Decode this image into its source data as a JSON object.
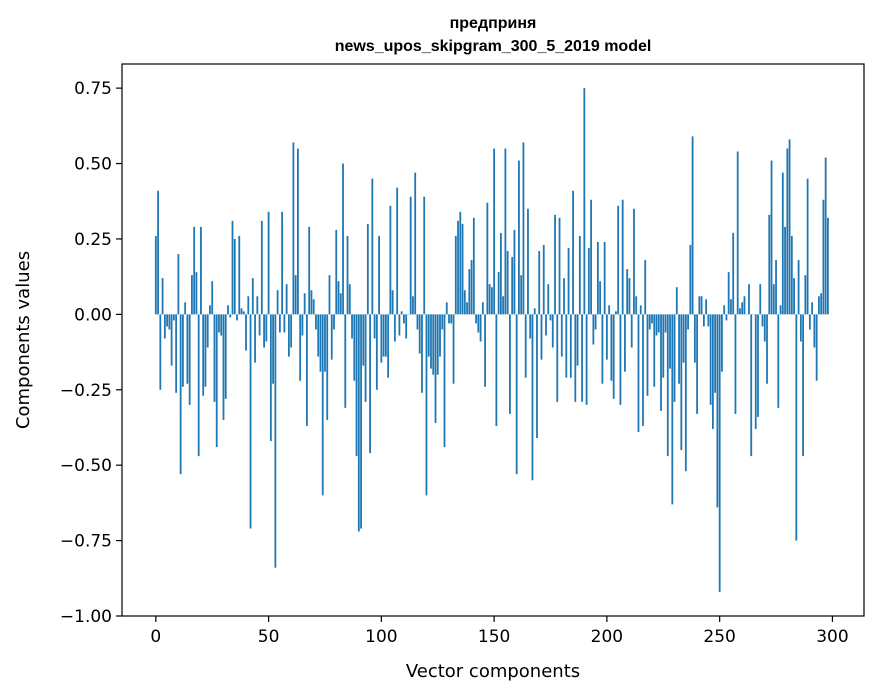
{
  "chart_data": {
    "type": "bar",
    "title": "предприня",
    "subtitle": "news_upos_skipgram_300_5_2019 model",
    "xlabel": "Vector components",
    "ylabel": "Components values",
    "xlim": [
      -15,
      314
    ],
    "ylim": [
      -1.0,
      0.83
    ],
    "xticks": [
      0,
      50,
      100,
      150,
      200,
      250,
      300
    ],
    "yticks": [
      -1.0,
      -0.75,
      -0.5,
      -0.25,
      0.0,
      0.25,
      0.5,
      0.75
    ],
    "ytick_labels": [
      "−1.00",
      "−0.75",
      "−0.50",
      "−0.25",
      "0.00",
      "0.25",
      "0.50",
      "0.75"
    ],
    "xtick_labels": [
      "0",
      "50",
      "100",
      "150",
      "200",
      "250",
      "300"
    ],
    "grid": false,
    "color": "#1f77b4",
    "values": [
      0.26,
      0.41,
      -0.25,
      0.12,
      -0.08,
      -0.04,
      -0.05,
      -0.17,
      -0.02,
      -0.26,
      0.2,
      -0.53,
      -0.24,
      0.04,
      -0.23,
      -0.3,
      0.13,
      0.29,
      0.14,
      -0.47,
      0.29,
      -0.27,
      -0.24,
      -0.11,
      0.03,
      0.11,
      -0.29,
      -0.44,
      -0.06,
      -0.07,
      -0.35,
      -0.28,
      0.03,
      -0.01,
      0.31,
      0.25,
      -0.02,
      0.26,
      0.02,
      0.01,
      -0.12,
      0.06,
      -0.71,
      0.12,
      -0.16,
      0.06,
      -0.07,
      0.31,
      -0.11,
      -0.09,
      0.34,
      -0.42,
      -0.23,
      -0.84,
      0.08,
      -0.06,
      0.34,
      -0.06,
      0.1,
      -0.14,
      -0.11,
      0.57,
      0.13,
      0.55,
      -0.22,
      -0.07,
      0.07,
      -0.37,
      0.29,
      0.08,
      0.05,
      -0.05,
      -0.14,
      -0.19,
      -0.6,
      -0.19,
      -0.35,
      0.13,
      -0.15,
      -0.05,
      0.28,
      0.11,
      0.07,
      0.5,
      -0.31,
      0.26,
      0.1,
      -0.08,
      -0.22,
      -0.47,
      -0.72,
      -0.71,
      -0.17,
      -0.29,
      0.3,
      -0.46,
      0.45,
      -0.08,
      -0.25,
      0.26,
      -0.16,
      -0.14,
      -0.14,
      -0.21,
      0.36,
      0.08,
      -0.09,
      0.42,
      -0.07,
      0.01,
      -0.03,
      -0.08,
      0.0,
      0.39,
      0.06,
      0.47,
      -0.05,
      -0.13,
      -0.26,
      0.39,
      -0.6,
      -0.14,
      -0.18,
      -0.2,
      -0.36,
      -0.2,
      -0.14,
      -0.05,
      -0.44,
      0.04,
      -0.03,
      -0.03,
      -0.23,
      0.26,
      0.31,
      0.34,
      0.3,
      0.08,
      0.04,
      0.15,
      0.18,
      0.32,
      -0.03,
      -0.06,
      -0.09,
      0.04,
      -0.24,
      0.37,
      0.1,
      0.09,
      0.55,
      -0.37,
      0.14,
      0.27,
      0.06,
      0.55,
      0.21,
      -0.33,
      0.19,
      0.28,
      -0.53,
      0.51,
      0.13,
      0.57,
      -0.21,
      0.35,
      -0.08,
      -0.55,
      0.02,
      -0.41,
      0.21,
      -0.15,
      0.23,
      -0.07,
      0.1,
      -0.02,
      -0.11,
      0.33,
      -0.29,
      0.32,
      -0.14,
      0.12,
      -0.21,
      0.22,
      -0.21,
      0.41,
      -0.29,
      -0.17,
      0.26,
      -0.29,
      0.75,
      -0.3,
      0.22,
      0.38,
      -0.1,
      -0.05,
      0.24,
      0.11,
      -0.23,
      0.24,
      -0.15,
      0.03,
      -0.22,
      -0.28,
      0.01,
      0.36,
      -0.3,
      0.38,
      -0.19,
      0.15,
      0.12,
      -0.11,
      0.35,
      0.06,
      -0.39,
      0.03,
      -0.37,
      0.18,
      -0.27,
      -0.05,
      -0.03,
      -0.24,
      -0.07,
      -0.06,
      -0.32,
      -0.21,
      -0.06,
      -0.47,
      -0.18,
      -0.63,
      -0.29,
      0.09,
      -0.23,
      -0.45,
      -0.16,
      -0.52,
      -0.05,
      0.23,
      0.59,
      -0.16,
      -0.33,
      0.06,
      0.06,
      -0.04,
      0.05,
      -0.04,
      -0.3,
      -0.38,
      -0.26,
      -0.64,
      -0.92,
      -0.19,
      0.03,
      -0.02,
      0.14,
      0.05,
      0.27,
      -0.33,
      0.54,
      0.02,
      0.04,
      0.06,
      0.0,
      0.1,
      -0.47,
      0.0,
      -0.38,
      -0.34,
      0.1,
      -0.04,
      -0.09,
      -0.23,
      0.33,
      0.51,
      0.1,
      0.18,
      -0.31,
      0.03,
      0.47,
      0.29,
      0.55,
      0.58,
      0.26,
      0.12,
      -0.75,
      0.18,
      -0.09,
      -0.47,
      0.13,
      0.45,
      -0.05,
      0.04,
      -0.11,
      -0.22,
      0.06,
      0.07,
      0.38,
      0.52,
      0.32
    ]
  }
}
